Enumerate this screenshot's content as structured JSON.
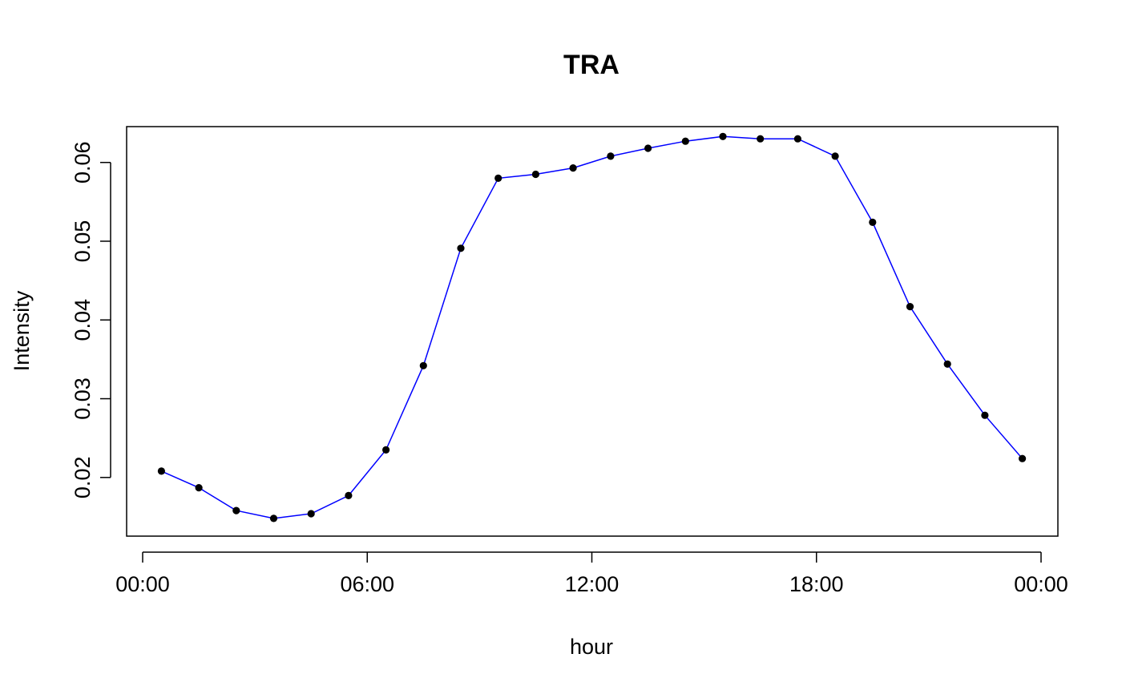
{
  "chart_data": {
    "type": "line",
    "title": "TRA",
    "xlabel": "hour",
    "ylabel": "Intensity",
    "x_ticks": [
      "00:00",
      "06:00",
      "12:00",
      "18:00",
      "00:00"
    ],
    "y_ticks": [
      "0.02",
      "0.03",
      "0.04",
      "0.05",
      "0.06"
    ],
    "y_tick_values": [
      0.02,
      0.03,
      0.04,
      0.05,
      0.06
    ],
    "xlim": [
      0,
      24
    ],
    "ylim": [
      0.0125,
      0.0645
    ],
    "grid": false,
    "legend": "none",
    "line_color": "#0000ff",
    "point_color": "#000000",
    "x": [
      "00:30",
      "01:30",
      "02:30",
      "03:30",
      "04:30",
      "05:30",
      "06:30",
      "07:30",
      "08:30",
      "09:30",
      "10:30",
      "11:30",
      "12:30",
      "13:30",
      "14:30",
      "15:30",
      "16:30",
      "17:30",
      "18:30",
      "19:30",
      "20:30",
      "21:30",
      "22:30",
      "23:30"
    ],
    "series": [
      {
        "values": [
          0.0208,
          0.0187,
          0.0158,
          0.0148,
          0.0154,
          0.0177,
          0.0235,
          0.0342,
          0.0491,
          0.058,
          0.0585,
          0.0593,
          0.0608,
          0.0618,
          0.0627,
          0.0633,
          0.063,
          0.063,
          0.0608,
          0.0524,
          0.0417,
          0.0344,
          0.0279,
          0.0224
        ]
      }
    ]
  }
}
